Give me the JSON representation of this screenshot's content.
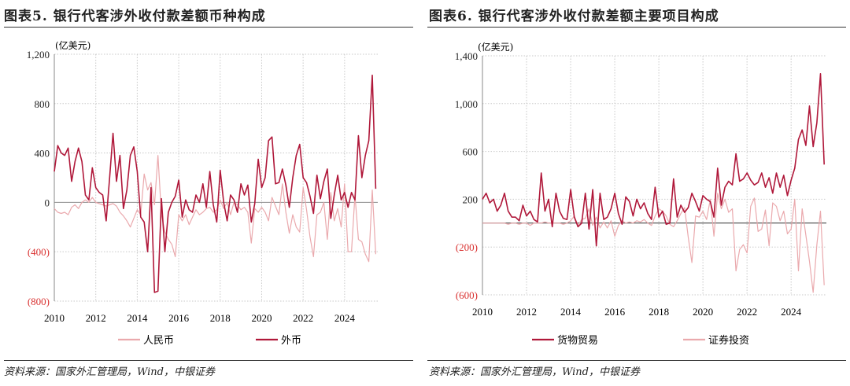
{
  "colors": {
    "dark": "#b0183a",
    "light": "#eaa9ad",
    "negative_label": "#d9302f",
    "grid": "#c8c8c8"
  },
  "chart_data": [
    {
      "type": "line",
      "title": "图表5. 银行代客涉外收付款差额币种构成",
      "unit_label": "(亿美元)",
      "x_start": "2010-01",
      "interval_months": 2,
      "xlim": [
        2010,
        2025.6
      ],
      "x_ticks": [
        "2010",
        "2012",
        "2014",
        "2016",
        "2018",
        "2020",
        "2022",
        "2024"
      ],
      "ylim": [
        -800,
        1200
      ],
      "y_ticks": [
        {
          "v": 1200,
          "label": "1,200"
        },
        {
          "v": 800,
          "label": "800"
        },
        {
          "v": 400,
          "label": "400"
        },
        {
          "v": 0,
          "label": "0"
        },
        {
          "v": -400,
          "label": "(400)"
        },
        {
          "v": -800,
          "label": "(800)"
        }
      ],
      "grid": true,
      "legend": "bottom",
      "source": "资料来源：国家外汇管理局，Wind，中银证券",
      "series": [
        {
          "name": "人民币",
          "color": "light",
          "values": [
            -50,
            -80,
            -90,
            -80,
            -100,
            -40,
            -20,
            -50,
            0,
            20,
            0,
            40,
            0,
            -10,
            -20,
            -30,
            -20,
            -10,
            -30,
            -80,
            -110,
            -150,
            -200,
            -130,
            -60,
            -100,
            230,
            100,
            160,
            -20,
            380,
            -100,
            -240,
            -300,
            -340,
            -440,
            -100,
            -150,
            -100,
            -180,
            -120,
            -60,
            -100,
            -80,
            -50,
            -40,
            -80,
            -60,
            20,
            -50,
            0,
            -100,
            0,
            -20,
            -60,
            -40,
            -80,
            -330,
            -50,
            -80,
            -40,
            -80,
            -150,
            40,
            -30,
            -100,
            150,
            -80,
            -250,
            -100,
            -200,
            -240,
            120,
            -60,
            -280,
            -440,
            -100,
            -80,
            0,
            -300,
            80,
            -150,
            -50,
            -200,
            150,
            -400,
            -400,
            60,
            -300,
            -320,
            -420,
            -480,
            100,
            -420
          ]
        },
        {
          "name": "外币",
          "color": "dark",
          "values": [
            250,
            460,
            400,
            380,
            440,
            170,
            330,
            440,
            330,
            60,
            20,
            280,
            120,
            80,
            60,
            -150,
            200,
            560,
            170,
            380,
            -50,
            100,
            380,
            450,
            250,
            -120,
            -160,
            -400,
            120,
            -730,
            -720,
            30,
            -400,
            -80,
            0,
            50,
            180,
            -120,
            20,
            -60,
            -80,
            60,
            0,
            150,
            -40,
            250,
            -20,
            -160,
            260,
            0,
            -150,
            60,
            20,
            -80,
            150,
            60,
            140,
            -160,
            -10,
            350,
            120,
            200,
            500,
            530,
            150,
            160,
            270,
            140,
            -40,
            200,
            380,
            470,
            200,
            160,
            50,
            -90,
            220,
            30,
            170,
            270,
            -130,
            60,
            220,
            20,
            80,
            -40,
            80,
            20,
            540,
            200,
            380,
            500,
            1030,
            110
          ]
        }
      ]
    },
    {
      "type": "line",
      "title": "图表6. 银行代客涉外收付款差额主要项目构成",
      "unit_label": "(亿美元)",
      "x_start": "2010-01",
      "interval_months": 2,
      "xlim": [
        2010,
        2025.6
      ],
      "x_ticks": [
        "2010",
        "2012",
        "2014",
        "2016",
        "2018",
        "2020",
        "2022",
        "2024"
      ],
      "ylim": [
        -600,
        1400
      ],
      "y_ticks": [
        {
          "v": 1400,
          "label": "1,400"
        },
        {
          "v": 1000,
          "label": "1,000"
        },
        {
          "v": 600,
          "label": "600"
        },
        {
          "v": 200,
          "label": "200"
        },
        {
          "v": -200,
          "label": "(200)"
        },
        {
          "v": -600,
          "label": "(600)"
        }
      ],
      "grid": true,
      "legend": "bottom",
      "source": "资料来源：国家外汇管理局，Wind，中银证券",
      "series": [
        {
          "name": "货物贸易",
          "color": "dark",
          "values": [
            200,
            250,
            170,
            200,
            100,
            150,
            250,
            100,
            50,
            50,
            20,
            150,
            60,
            100,
            30,
            10,
            420,
            100,
            200,
            -30,
            250,
            100,
            40,
            30,
            280,
            50,
            -30,
            0,
            250,
            -50,
            280,
            -190,
            250,
            30,
            50,
            120,
            250,
            80,
            -10,
            220,
            180,
            60,
            200,
            120,
            170,
            80,
            30,
            300,
            50,
            100,
            -10,
            0,
            370,
            50,
            150,
            90,
            130,
            250,
            180,
            100,
            230,
            200,
            180,
            50,
            460,
            150,
            300,
            350,
            320,
            580,
            350,
            370,
            420,
            360,
            320,
            340,
            420,
            300,
            380,
            250,
            420,
            300,
            400,
            230,
            360,
            460,
            700,
            780,
            650,
            980,
            640,
            840,
            1250,
            490
          ]
        },
        {
          "name": "证券投资",
          "color": "light",
          "values": [
            0,
            0,
            0,
            0,
            0,
            0,
            0,
            -10,
            0,
            0,
            -10,
            0,
            0,
            -20,
            0,
            0,
            0,
            10,
            0,
            0,
            0,
            0,
            -10,
            0,
            20,
            60,
            -20,
            30,
            40,
            120,
            -20,
            50,
            -40,
            10,
            -40,
            20,
            -110,
            -20,
            20,
            0,
            10,
            0,
            20,
            10,
            30,
            0,
            -20,
            60,
            120,
            100,
            60,
            -10,
            -30,
            20,
            80,
            130,
            -120,
            -330,
            60,
            50,
            100,
            30,
            200,
            -110,
            250,
            120,
            200,
            90,
            120,
            -400,
            -220,
            -180,
            -250,
            140,
            210,
            -70,
            -50,
            110,
            -190,
            170,
            140,
            20,
            100,
            -90,
            -50,
            200,
            -400,
            120,
            -100,
            -320,
            -580,
            -180,
            100,
            -520
          ]
        }
      ]
    }
  ]
}
